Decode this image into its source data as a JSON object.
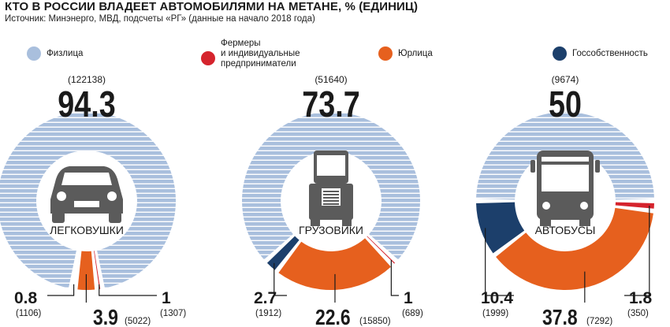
{
  "header": {
    "title": "КТО В РОССИИ ВЛАДЕЕТ АВТОМОБИЛЯМИ НА МЕТАНЕ, % (ЕДИНИЦ)",
    "source": "Источник: Минэнерго, МВД, подсчеты «РГ» (данные на начало 2018 года)"
  },
  "legend": [
    {
      "name": "Физлица",
      "color": "#a9bfdd"
    },
    {
      "name": "Фермеры\nи индивидуальные\nпредприниматели",
      "color": "#d5242d"
    },
    {
      "name": "Юрлица",
      "color": "#e6601e"
    },
    {
      "name": "Госсобственность",
      "color": "#1c3f6b"
    }
  ],
  "colors": {
    "individuals": "#a9bfdd",
    "farmers": "#d5242d",
    "legal": "#e6601e",
    "state": "#1c3f6b",
    "text": "#1a1a1a"
  },
  "chart_data": [
    {
      "type": "pie",
      "title": "ЛЕГКОВУШКИ",
      "icon": "car-icon",
      "series": [
        {
          "name": "Физлица",
          "percent": "94.3",
          "count": "(122138)"
        },
        {
          "name": "Фермеры и индивидуальные предприниматели",
          "percent": "1",
          "count": "(1307)"
        },
        {
          "name": "Юрлица",
          "percent": "3.9",
          "count": "(5022)"
        },
        {
          "name": "Госсобственность",
          "percent": "0.8",
          "count": "(1106)"
        }
      ]
    },
    {
      "type": "pie",
      "title": "ГРУЗОВИКИ",
      "icon": "truck-icon",
      "series": [
        {
          "name": "Физлица",
          "percent": "73.7",
          "count": "(51640)"
        },
        {
          "name": "Фермеры и индивидуальные предприниматели",
          "percent": "1",
          "count": "(689)"
        },
        {
          "name": "Юрлица",
          "percent": "22.6",
          "count": "(15850)"
        },
        {
          "name": "Госсобственность",
          "percent": "2.7",
          "count": "(1912)"
        }
      ]
    },
    {
      "type": "pie",
      "title": "АВТОБУСЫ",
      "icon": "bus-icon",
      "series": [
        {
          "name": "Физлица",
          "percent": "50",
          "count": "(9674)"
        },
        {
          "name": "Фермеры и индивидуальные предприниматели",
          "percent": "1.8",
          "count": "(350)"
        },
        {
          "name": "Юрлица",
          "percent": "37.8",
          "count": "(7292)"
        },
        {
          "name": "Госсобственность",
          "percent": "10.4",
          "count": "(1999)"
        }
      ]
    }
  ]
}
